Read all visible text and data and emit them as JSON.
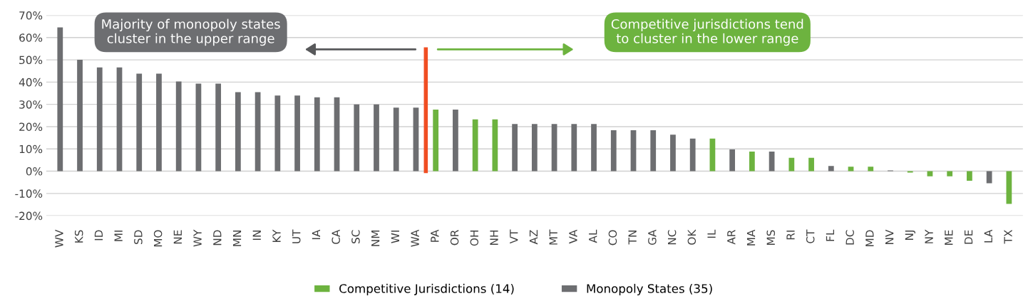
{
  "chart_data": {
    "type": "bar",
    "categories": [
      "WV",
      "KS",
      "ID",
      "MI",
      "SD",
      "MO",
      "NE",
      "WY",
      "ND",
      "MN",
      "IN",
      "KY",
      "UT",
      "IA",
      "CA",
      "SC",
      "NM",
      "WI",
      "WA",
      "PA",
      "OR",
      "OH",
      "NH",
      "VT",
      "AZ",
      "MT",
      "VA",
      "AL",
      "CO",
      "TN",
      "GA",
      "NC",
      "OK",
      "IL",
      "AR",
      "MA",
      "MS",
      "RI",
      "CT",
      "FL",
      "DC",
      "MD",
      "NV",
      "NJ",
      "NY",
      "ME",
      "DE",
      "LA",
      "TX"
    ],
    "series": [
      {
        "name": "Competitive Jurisdictions (14)",
        "color": "#6db33f",
        "values": [
          null,
          null,
          null,
          null,
          null,
          null,
          null,
          null,
          null,
          null,
          null,
          null,
          null,
          null,
          null,
          null,
          null,
          null,
          null,
          27.7,
          null,
          23.3,
          23.3,
          null,
          null,
          null,
          null,
          null,
          null,
          null,
          null,
          null,
          null,
          14.6,
          null,
          8.8,
          null,
          6.0,
          6.0,
          null,
          2.0,
          2.0,
          null,
          -0.6,
          -2.3,
          -2.3,
          -4.3,
          null,
          -14.7
        ]
      },
      {
        "name": "Monopoly States (35)",
        "color": "#6d6e71",
        "values": [
          64.6,
          50.0,
          46.6,
          46.6,
          43.8,
          43.8,
          40.3,
          39.3,
          39.3,
          35.5,
          35.5,
          34.0,
          34.0,
          33.2,
          33.2,
          30.0,
          30.0,
          28.5,
          28.5,
          null,
          27.7,
          null,
          null,
          21.2,
          21.2,
          21.2,
          21.2,
          21.2,
          18.4,
          18.4,
          18.4,
          16.4,
          14.6,
          null,
          9.8,
          null,
          8.8,
          null,
          null,
          2.3,
          null,
          null,
          0.3,
          null,
          null,
          null,
          null,
          -5.4,
          null
        ]
      }
    ],
    "ylim": [
      -20,
      70
    ],
    "yticks": [
      {
        "value": -20,
        "label": "-20%"
      },
      {
        "value": -10,
        "label": "-10%"
      },
      {
        "value": 0,
        "label": "0%"
      },
      {
        "value": 10,
        "label": "10%"
      },
      {
        "value": 20,
        "label": "20%"
      },
      {
        "value": 30,
        "label": "30%"
      },
      {
        "value": 40,
        "label": "40%"
      },
      {
        "value": 50,
        "label": "50%"
      },
      {
        "value": 60,
        "label": "60%"
      },
      {
        "value": 70,
        "label": "70%"
      }
    ],
    "grid": "y",
    "legend": "bottom",
    "ref_lines": [
      {
        "axis": "x",
        "value": "WA",
        "color": "#f04e23"
      }
    ],
    "annotations": [
      "Majority of monopoly states cluster in the upper range",
      "Competitive jurisdictions tend to cluster in the lower range"
    ]
  }
}
